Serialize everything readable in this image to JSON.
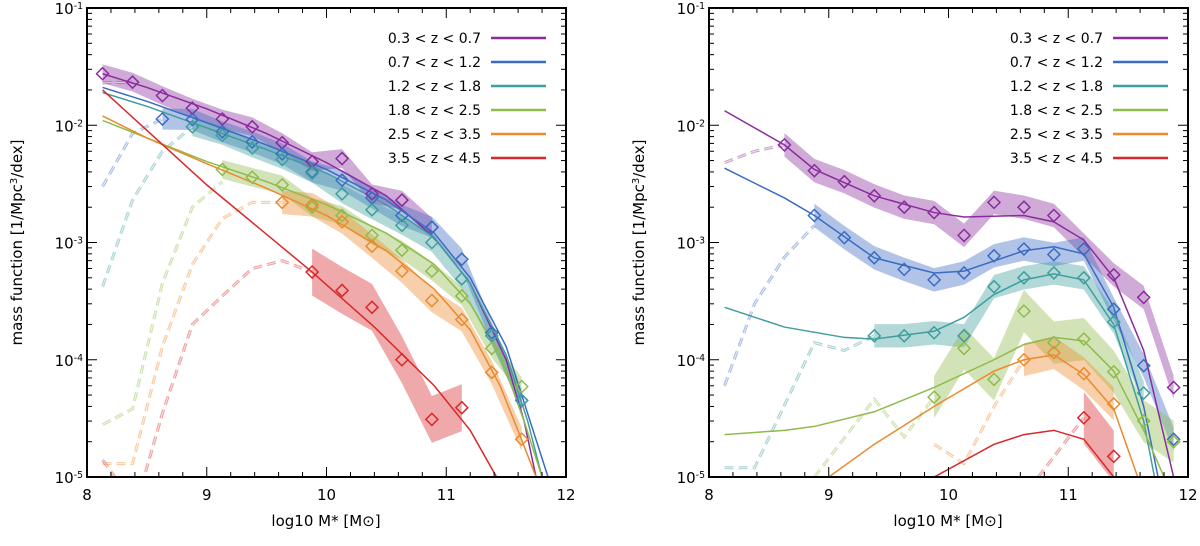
{
  "chart_data": [
    {
      "type": "line",
      "xlabel": "log10 M* [M⊙]",
      "ylabel": "mass function [1/Mpc3/dex]",
      "xlim": [
        8,
        12
      ],
      "ylim": [
        1e-05,
        0.1
      ],
      "yscale": "log",
      "xticks": [
        "8",
        "9",
        "10",
        "11",
        "12"
      ],
      "yticks": [
        "10-5",
        "10-4",
        "10-3",
        "10-2",
        "10-1"
      ],
      "legend_position": "top-right",
      "series": [
        {
          "name": "0.3 < z < 0.7",
          "color": "#8b2c9e",
          "band_dex": 0.08,
          "points": {
            "x": [
              8.13,
              8.38,
              8.63,
              8.88,
              9.13,
              9.38,
              9.63,
              9.88,
              10.13,
              10.38,
              10.63,
              10.88
            ],
            "y": [
              0.0275,
              0.0233,
              0.0179,
              0.014,
              0.0113,
              0.0097,
              0.0071,
              0.0049,
              0.0052,
              0.0026,
              0.0023,
              0.00135
            ]
          },
          "model": {
            "x": [
              8.13,
              8.5,
              9,
              9.5,
              10,
              10.5,
              10.9,
              11.2,
              11.5,
              11.65,
              11.75
            ],
            "y": [
              0.0275,
              0.021,
              0.0138,
              0.0085,
              0.0048,
              0.0025,
              0.0011,
              0.00045,
              0.0001,
              3e-05,
              1e-05
            ]
          },
          "incomplete": {
            "x": [
              8.13,
              8.38
            ],
            "y": [
              0.023,
              0.0233
            ]
          }
        },
        {
          "name": "0.7 < z < 1.2",
          "color": "#3b6cc2",
          "band_dex": 0.09,
          "points": {
            "x": [
              8.63,
              8.88,
              9.13,
              9.38,
              9.63,
              9.88,
              10.13,
              10.38,
              10.63,
              10.88,
              11.13,
              11.38,
              11.63
            ],
            "y": [
              0.0113,
              0.0112,
              0.0088,
              0.0072,
              0.0057,
              0.004,
              0.0034,
              0.0024,
              0.0017,
              0.00135,
              0.00072,
              0.00017,
              4.5e-05
            ]
          },
          "model": {
            "x": [
              8.13,
              8.5,
              9,
              9.5,
              10,
              10.5,
              10.9,
              11.2,
              11.5,
              11.7,
              11.85
            ],
            "y": [
              0.021,
              0.016,
              0.0105,
              0.0068,
              0.0042,
              0.0023,
              0.0012,
              0.0005,
              0.00013,
              3e-05,
              1e-05
            ]
          },
          "incomplete": {
            "x": [
              8.13,
              8.38,
              8.63
            ],
            "y": [
              0.003,
              0.0085,
              0.0113
            ]
          }
        },
        {
          "name": "1.2 < z < 1.8",
          "color": "#3f9e9e",
          "band_dex": 0.08,
          "points": {
            "x": [
              8.88,
              9.13,
              9.38,
              9.63,
              9.88,
              10.13,
              10.38,
              10.63,
              10.88,
              11.13,
              11.38,
              11.63
            ],
            "y": [
              0.0097,
              0.0082,
              0.0064,
              0.0051,
              0.0039,
              0.0026,
              0.0019,
              0.0014,
              0.001,
              0.00049,
              0.00016,
              4.5e-05
            ]
          },
          "model": {
            "x": [
              8.13,
              8.5,
              9,
              9.5,
              10,
              10.5,
              10.9,
              11.2,
              11.5,
              11.68,
              11.8
            ],
            "y": [
              0.019,
              0.0145,
              0.0095,
              0.0062,
              0.0039,
              0.0021,
              0.0011,
              0.00045,
              0.00011,
              3e-05,
              1e-05
            ]
          },
          "incomplete": {
            "x": [
              8.13,
              8.38,
              8.63,
              8.88
            ],
            "y": [
              0.00042,
              0.0023,
              0.006,
              0.0097
            ]
          }
        },
        {
          "name": "1.8 < z < 2.5",
          "color": "#8fbb4b",
          "band_dex": 0.08,
          "points": {
            "x": [
              9.13,
              9.38,
              9.63,
              9.88,
              10.13,
              10.38,
              10.63,
              10.88,
              11.13,
              11.38,
              11.63
            ],
            "y": [
              0.0042,
              0.0036,
              0.0031,
              0.002,
              0.0017,
              0.00115,
              0.00086,
              0.00057,
              0.00035,
              0.000125,
              5.9e-05
            ]
          },
          "model": {
            "x": [
              8.13,
              8.5,
              9,
              9.5,
              10,
              10.5,
              10.9,
              11.2,
              11.45,
              11.65,
              11.8
            ],
            "y": [
              0.011,
              0.0078,
              0.0049,
              0.0033,
              0.0021,
              0.0012,
              0.00065,
              0.0003,
              0.00011,
              3e-05,
              1e-05
            ]
          },
          "incomplete": {
            "x": [
              8.13,
              8.38,
              8.63,
              8.88,
              9.13
            ],
            "y": [
              2.8e-05,
              3.8e-05,
              0.00045,
              0.002,
              0.0033
            ]
          }
        },
        {
          "name": "2.5 < z < 3.5",
          "color": "#ea8a2c",
          "band_dex": 0.1,
          "points": {
            "x": [
              9.63,
              9.88,
              10.13,
              10.38,
              10.63,
              10.88,
              11.13,
              11.38,
              11.63
            ],
            "y": [
              0.0022,
              0.0021,
              0.0015,
              0.00093,
              0.00057,
              0.00032,
              0.00022,
              7.8e-05,
              2.1e-05
            ]
          },
          "model": {
            "x": [
              8.13,
              8.5,
              9,
              9.5,
              10,
              10.5,
              10.9,
              11.2,
              11.45,
              11.62,
              11.75
            ],
            "y": [
              0.012,
              0.0078,
              0.0047,
              0.0029,
              0.0017,
              0.00085,
              0.0004,
              0.00018,
              6e-05,
              2.2e-05,
              1e-05
            ]
          },
          "incomplete": {
            "x": [
              8.13,
              8.38,
              8.63,
              8.88,
              9.13,
              9.38,
              9.63
            ],
            "y": [
              1.3e-05,
              1.3e-05,
              0.00013,
              0.00065,
              0.0016,
              0.0022,
              0.0022
            ]
          }
        },
        {
          "name": "3.5 < z < 4.5",
          "color": "#d8282a",
          "band_dex": 0.2,
          "points": {
            "x": [
              9.88,
              10.13,
              10.38,
              10.63,
              10.88,
              11.13
            ],
            "y": [
              0.00056,
              0.00039,
              0.00028,
              0.0001,
              3.1e-05,
              3.9e-05
            ]
          },
          "model": {
            "x": [
              8.13,
              9,
              9.88,
              10.4,
              10.9,
              11.2,
              11.42
            ],
            "y": [
              0.02,
              0.0031,
              0.00056,
              0.00019,
              6e-05,
              2.5e-05,
              1e-05
            ]
          },
          "incomplete": {
            "x": [
              8.13,
              8.3,
              8.45,
              8.63,
              8.88,
              9.13,
              9.38,
              9.63,
              9.88
            ],
            "y": [
              1.4e-05,
              8e-06,
              8e-06,
              3.5e-05,
              0.0002,
              0.00035,
              0.0006,
              0.0007,
              0.00056
            ]
          }
        }
      ]
    },
    {
      "type": "line",
      "xlabel": "log10 M* [M⊙]",
      "ylabel": "mass function [1/Mpc3/dex]",
      "xlim": [
        8,
        12
      ],
      "ylim": [
        1e-05,
        0.1
      ],
      "yscale": "log",
      "xticks": [
        "8",
        "9",
        "10",
        "11",
        "12"
      ],
      "yticks": [
        "10-5",
        "10-4",
        "10-3",
        "10-2",
        "10-1"
      ],
      "legend_position": "top-right",
      "series": [
        {
          "name": "0.3 < z < 0.7",
          "color": "#8b2c9e",
          "band_dex": 0.1,
          "points": {
            "x": [
              8.63,
              8.88,
              9.13,
              9.38,
              9.63,
              9.88,
              10.13,
              10.38,
              10.63,
              10.88,
              11.38,
              11.63,
              11.88
            ],
            "y": [
              0.0068,
              0.0041,
              0.0033,
              0.0025,
              0.002,
              0.0018,
              0.00115,
              0.0022,
              0.002,
              0.0017,
              0.00053,
              0.00034,
              5.8e-05
            ]
          },
          "model": {
            "x": [
              8.13,
              8.63,
              8.88,
              9.38,
              9.88,
              10.13,
              10.63,
              10.88,
              11.13,
              11.38,
              11.63,
              11.88
            ],
            "y": [
              0.0133,
              0.0068,
              0.0042,
              0.0025,
              0.0018,
              0.00165,
              0.0017,
              0.0015,
              0.00105,
              0.0005,
              0.00012,
              1e-05
            ]
          },
          "incomplete": {
            "x": [
              8.13,
              8.38,
              8.63
            ],
            "y": [
              0.0048,
              0.006,
              0.0068
            ]
          }
        },
        {
          "name": "0.7 < z < 1.2",
          "color": "#3b6cc2",
          "band_dex": 0.1,
          "points": {
            "x": [
              8.88,
              9.13,
              9.38,
              9.63,
              9.88,
              10.13,
              10.38,
              10.63,
              10.88,
              11.13,
              11.38,
              11.63,
              11.88
            ],
            "y": [
              0.0017,
              0.0011,
              0.00074,
              0.00059,
              0.00048,
              0.00055,
              0.00077,
              0.00088,
              0.00079,
              0.00088,
              0.00027,
              8.9e-05,
              2.1e-05
            ]
          },
          "model": {
            "x": [
              8.13,
              8.63,
              8.88,
              9.38,
              9.88,
              10.13,
              10.63,
              10.88,
              11.13,
              11.38,
              11.63,
              11.75
            ],
            "y": [
              0.0043,
              0.0024,
              0.0017,
              0.00074,
              0.00055,
              0.00057,
              0.00085,
              0.00092,
              0.0008,
              0.00028,
              4e-05,
              1e-05
            ]
          },
          "incomplete": {
            "x": [
              8.13,
              8.38,
              8.63,
              8.88
            ],
            "y": [
              6e-05,
              0.0003,
              0.00075,
              0.0014
            ]
          }
        },
        {
          "name": "1.2 < z < 1.8",
          "color": "#3f9e9e",
          "band_dex": 0.1,
          "points": {
            "x": [
              9.38,
              9.63,
              9.88,
              10.13,
              10.38,
              10.63,
              10.88,
              11.13,
              11.38,
              11.63
            ],
            "y": [
              0.00016,
              0.00016,
              0.00017,
              0.00016,
              0.00042,
              0.0005,
              0.00055,
              0.0005,
              0.00021,
              5.2e-05
            ]
          },
          "model": {
            "x": [
              8.13,
              8.63,
              9.13,
              9.38,
              9.88,
              10.13,
              10.38,
              10.63,
              10.88,
              11.13,
              11.38,
              11.63,
              11.72
            ],
            "y": [
              0.00028,
              0.00019,
              0.000155,
              0.00015,
              0.000175,
              0.00023,
              0.00036,
              0.00048,
              0.00054,
              0.00048,
              0.0002,
              3e-05,
              1e-05
            ]
          },
          "incomplete": {
            "x": [
              8.13,
              8.38,
              8.88,
              9.13,
              9.38
            ],
            "y": [
              1.2e-05,
              1.2e-05,
              0.00014,
              0.00012,
              0.00016
            ]
          }
        },
        {
          "name": "1.8 < z < 2.5",
          "color": "#8fbb4b",
          "band_dex": 0.18,
          "points": {
            "x": [
              9.88,
              10.13,
              10.38,
              10.63,
              10.88,
              11.13,
              11.38,
              11.63,
              11.88
            ],
            "y": [
              4.8e-05,
              0.000125,
              6.8e-05,
              0.00026,
              0.00014,
              0.00015,
              7.9e-05,
              3e-05,
              2e-05
            ]
          },
          "model": {
            "x": [
              8.13,
              8.63,
              8.88,
              9.38,
              9.88,
              10.38,
              10.63,
              10.88,
              11.13,
              11.38,
              11.63,
              11.8
            ],
            "y": [
              2.3e-05,
              2.5e-05,
              2.7e-05,
              3.6e-05,
              5.8e-05,
              0.0001,
              0.000135,
              0.000155,
              0.000145,
              8e-05,
              2.5e-05,
              1e-05
            ]
          },
          "incomplete": {
            "x": [
              8.88,
              9.38,
              9.63,
              9.88
            ],
            "y": [
              1e-05,
              4.6e-05,
              2.2e-05,
              4.8e-05
            ]
          }
        },
        {
          "name": "2.5 < z < 3.5",
          "color": "#ea8a2c",
          "band_dex": 0.14,
          "points": {
            "x": [
              10.63,
              10.88,
              11.13,
              11.38
            ],
            "y": [
              0.0001,
              0.000115,
              7.6e-05,
              4.2e-05
            ]
          },
          "model": {
            "x": [
              9.0,
              9.38,
              9.88,
              10.38,
              10.63,
              10.88,
              11.13,
              11.38,
              11.58
            ],
            "y": [
              1e-05,
              1.9e-05,
              4e-05,
              8e-05,
              0.0001,
              0.00011,
              7.5e-05,
              3.8e-05,
              1e-05
            ]
          },
          "incomplete": {
            "x": [
              9.88,
              10.13,
              10.38,
              10.63
            ],
            "y": [
              1.9e-05,
              1.3e-05,
              4e-05,
              0.0001
            ]
          }
        },
        {
          "name": "3.5 < z < 4.5",
          "color": "#d8282a",
          "band_dex": 0.22,
          "points": {
            "x": [
              11.13,
              11.38
            ],
            "y": [
              3.2e-05,
              1.5e-05
            ]
          },
          "model": {
            "x": [
              9.88,
              10.38,
              10.63,
              10.88,
              11.13,
              11.38
            ],
            "y": [
              1e-05,
              1.9e-05,
              2.3e-05,
              2.5e-05,
              2.1e-05,
              1e-05
            ]
          },
          "incomplete": {
            "x": [
              10.75,
              11.13
            ],
            "y": [
              1e-05,
              3.2e-05
            ]
          }
        }
      ]
    }
  ]
}
